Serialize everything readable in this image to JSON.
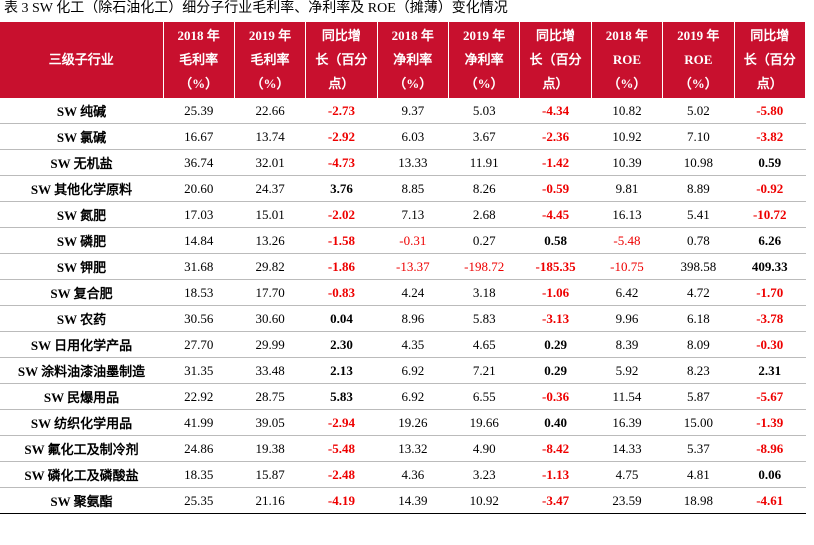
{
  "title": "表 3 SW 化工（除石油化工）细分子行业毛利率、净利率及 ROE（摊薄）变化情况",
  "table": {
    "header": [
      [
        "三级子行业"
      ],
      [
        "2018 年",
        "毛利率",
        "（%）"
      ],
      [
        "2019 年",
        "毛利率",
        "（%）"
      ],
      [
        "同比增",
        "长（百分",
        "点）"
      ],
      [
        "2018 年",
        "净利率",
        "（%）"
      ],
      [
        "2019 年",
        "净利率",
        "（%）"
      ],
      [
        "同比增",
        "长（百分",
        "点）"
      ],
      [
        "2018 年",
        "ROE",
        "（%）"
      ],
      [
        "2019 年",
        "ROE",
        "（%）"
      ],
      [
        "同比增",
        "长（百分",
        "点）"
      ]
    ],
    "rows": [
      [
        "SW 纯碱",
        "25.39",
        "22.66",
        "-2.73",
        "9.37",
        "5.03",
        "-4.34",
        "10.82",
        "5.02",
        "-5.80"
      ],
      [
        "SW 氯碱",
        "16.67",
        "13.74",
        "-2.92",
        "6.03",
        "3.67",
        "-2.36",
        "10.92",
        "7.10",
        "-3.82"
      ],
      [
        "SW 无机盐",
        "36.74",
        "32.01",
        "-4.73",
        "13.33",
        "11.91",
        "-1.42",
        "10.39",
        "10.98",
        "0.59"
      ],
      [
        "SW 其他化学原料",
        "20.60",
        "24.37",
        "3.76",
        "8.85",
        "8.26",
        "-0.59",
        "9.81",
        "8.89",
        "-0.92"
      ],
      [
        "SW 氮肥",
        "17.03",
        "15.01",
        "-2.02",
        "7.13",
        "2.68",
        "-4.45",
        "16.13",
        "5.41",
        "-10.72"
      ],
      [
        "SW 磷肥",
        "14.84",
        "13.26",
        "-1.58",
        "-0.31",
        "0.27",
        "0.58",
        "-5.48",
        "0.78",
        "6.26"
      ],
      [
        "SW 钾肥",
        "31.68",
        "29.82",
        "-1.86",
        "-13.37",
        "-198.72",
        "-185.35",
        "-10.75",
        "398.58",
        "409.33"
      ],
      [
        "SW 复合肥",
        "18.53",
        "17.70",
        "-0.83",
        "4.24",
        "3.18",
        "-1.06",
        "6.42",
        "4.72",
        "-1.70"
      ],
      [
        "SW 农药",
        "30.56",
        "30.60",
        "0.04",
        "8.96",
        "5.83",
        "-3.13",
        "9.96",
        "6.18",
        "-3.78"
      ],
      [
        "SW 日用化学产品",
        "27.70",
        "29.99",
        "2.30",
        "4.35",
        "4.65",
        "0.29",
        "8.39",
        "8.09",
        "-0.30"
      ],
      [
        "SW 涂料油漆油墨制造",
        "31.35",
        "33.48",
        "2.13",
        "6.92",
        "7.21",
        "0.29",
        "5.92",
        "8.23",
        "2.31"
      ],
      [
        "SW 民爆用品",
        "22.92",
        "28.75",
        "5.83",
        "6.92",
        "6.55",
        "-0.36",
        "11.54",
        "5.87",
        "-5.67"
      ],
      [
        "SW 纺织化学用品",
        "41.99",
        "39.05",
        "-2.94",
        "19.26",
        "19.66",
        "0.40",
        "16.39",
        "15.00",
        "-1.39"
      ],
      [
        "SW 氟化工及制冷剂",
        "24.86",
        "19.38",
        "-5.48",
        "13.32",
        "4.90",
        "-8.42",
        "14.33",
        "5.37",
        "-8.96"
      ],
      [
        "SW 磷化工及磷酸盐",
        "18.35",
        "15.87",
        "-2.48",
        "4.36",
        "3.23",
        "-1.13",
        "4.75",
        "4.81",
        "0.06"
      ],
      [
        "SW 聚氨酯",
        "25.35",
        "21.16",
        "-4.19",
        "14.39",
        "10.92",
        "-3.47",
        "23.59",
        "18.98",
        "-4.61"
      ]
    ]
  }
}
